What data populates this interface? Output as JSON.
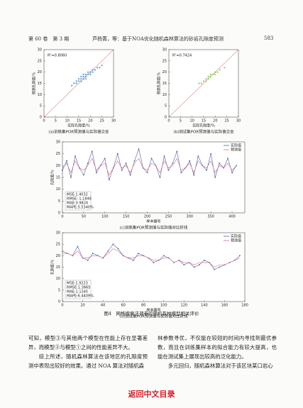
{
  "header": {
    "volume": "第 60 卷　第 3 期",
    "title": "芦杨菁，等：基于NOA优化随机森林算法的砂岩孔隙度预测",
    "page": "583"
  },
  "chart_data": [
    {
      "type": "scatter",
      "title": "(a)训练集POR预测值与实际值交会",
      "xlabel": "实际孔隙度/%",
      "ylabel": "预测孔隙度/%",
      "annotation": "R²=0.8060",
      "color": "#3a7fc4",
      "x": [
        12,
        13,
        14,
        14,
        15,
        15,
        16,
        16,
        16,
        17,
        17,
        17,
        18,
        18,
        18,
        19,
        19,
        20,
        20,
        21,
        21,
        22,
        23,
        24,
        25
      ],
      "y": [
        14,
        15,
        15,
        16,
        16,
        17,
        17,
        16,
        18,
        17,
        18,
        19,
        18,
        19,
        17,
        19,
        20,
        20,
        19,
        20,
        21,
        21,
        22,
        22,
        23
      ],
      "xlim": [
        0,
        30
      ],
      "ylim": [
        0,
        30
      ],
      "xticks": [
        0,
        5,
        10,
        15,
        20,
        25,
        30
      ],
      "yticks": [
        0,
        5,
        10,
        15,
        20,
        25,
        30
      ]
    },
    {
      "type": "scatter",
      "title": "(b)测试集POR预测值与实际值交会",
      "xlabel": "实际孔隙度/%",
      "ylabel": "预测孔隙度/%",
      "annotation": "R²=0.7424",
      "color": "#6fbf3a",
      "x": [
        13,
        14,
        15,
        16,
        16,
        17,
        17,
        18,
        18,
        19,
        20,
        20,
        21,
        22,
        24
      ],
      "y": [
        15,
        15,
        16,
        16,
        17,
        17,
        18,
        18,
        19,
        19,
        19,
        20,
        20,
        21,
        22
      ],
      "xlim": [
        0,
        30
      ],
      "ylim": [
        0,
        30
      ],
      "xticks": [
        0,
        5,
        10,
        15,
        20,
        25,
        30
      ],
      "yticks": [
        0,
        5,
        10,
        15,
        20,
        25,
        30
      ]
    },
    {
      "type": "line",
      "title": "(c)训练集POR预测值与实际值对比折线",
      "xlabel": "样本编号",
      "ylabel": "孔隙度/%",
      "stats": [
        "MSE:1.4032",
        "RMSE: 1.1846",
        "MAE:0.9824",
        "MAPE:5.5340%"
      ],
      "x": [
        0,
        10,
        20,
        30,
        40,
        50,
        60,
        70,
        80,
        90,
        100,
        110,
        120,
        130,
        140,
        150,
        160,
        170,
        180,
        190,
        200,
        210,
        220,
        230,
        240,
        250,
        260,
        270,
        280,
        290,
        300,
        310,
        320,
        330,
        340,
        350,
        360,
        370,
        380,
        390,
        400,
        410
      ],
      "series": [
        {
          "name": "实际值",
          "color": "#4a5fa8",
          "marker": "circle",
          "values": [
            18,
            22,
            15,
            24,
            19,
            16,
            21,
            26,
            17,
            20,
            23,
            14,
            19,
            25,
            18,
            21,
            16,
            22,
            27,
            19,
            17,
            23,
            20,
            15,
            24,
            18,
            21,
            26,
            17,
            19,
            22,
            16,
            24,
            20,
            18,
            25,
            15,
            21,
            19,
            23,
            17,
            20
          ]
        },
        {
          "name": "预测值",
          "color": "#e06c7a",
          "values": [
            19,
            21,
            17,
            22,
            19,
            18,
            20,
            23,
            18,
            20,
            21,
            16,
            19,
            22,
            19,
            20,
            17,
            21,
            23,
            19,
            18,
            21,
            20,
            17,
            22,
            19,
            20,
            23,
            18,
            19,
            21,
            17,
            22,
            20,
            19,
            22,
            17,
            20,
            19,
            21,
            18,
            20
          ]
        }
      ],
      "xlim": [
        0,
        430
      ],
      "ylim": [
        0,
        30
      ],
      "xticks": [
        0,
        50,
        100,
        150,
        200,
        250,
        300,
        350,
        400
      ],
      "yticks": [
        0,
        5,
        10,
        15,
        20,
        25,
        30
      ],
      "legend": "upper right"
    },
    {
      "type": "line",
      "title": "(d)测试集POR预测值与实际值对比折线",
      "xlabel": "样本编号",
      "ylabel": "孔隙度/%",
      "stats": [
        "MSE:1.9223",
        "RMSE:1.3865",
        "MAE:1.1345",
        "MAPE:6.4409%"
      ],
      "x": [
        0,
        5,
        10,
        15,
        20,
        25,
        30,
        35,
        40,
        45,
        50,
        55,
        60,
        65,
        70,
        75,
        80,
        85,
        90,
        95,
        100,
        105,
        110,
        115,
        120,
        125,
        130,
        135,
        140,
        145,
        150,
        155,
        160,
        165,
        170,
        175
      ],
      "series": [
        {
          "name": "实际值",
          "color": "#4a5fa8",
          "marker": "circle",
          "values": [
            22,
            21,
            20,
            24,
            19,
            18,
            21,
            20,
            19,
            22,
            25,
            23,
            20,
            19,
            18,
            21,
            20,
            19,
            17,
            18,
            20,
            19,
            17,
            18,
            16,
            17,
            15,
            16,
            18,
            17,
            14,
            15,
            16,
            17,
            18,
            20
          ]
        },
        {
          "name": "预测值",
          "color": "#e06c7a",
          "values": [
            21,
            21,
            20,
            22,
            19,
            19,
            20,
            20,
            19,
            21,
            23,
            22,
            20,
            19,
            19,
            20,
            20,
            19,
            18,
            18,
            19,
            19,
            17,
            18,
            17,
            17,
            16,
            17,
            17,
            17,
            15,
            16,
            16,
            17,
            18,
            19
          ]
        }
      ],
      "xlim": [
        0,
        180
      ],
      "ylim": [
        0,
        30
      ],
      "xticks": [
        0,
        20,
        40,
        60,
        80,
        100,
        120,
        140,
        160,
        180
      ],
      "yticks": [
        0,
        5,
        10,
        15,
        20,
        25,
        30
      ],
      "legend": "upper right"
    }
  ],
  "figure_caption": "图4　网格搜索法调参的随机森林模型相关评价",
  "body": {
    "left": [
      "可知，模型③与其他两个模型在性能上存在显著差异，而模型②与模型①之间的性能差异不大。",
      "综上所述，随机森林算法在该地区的孔隙度预测中表现出较好的效果。通过 NOA 算法对随机森"
    ],
    "right": [
      "林参数寻优，不仅能在较短的时间内寻找到最优参数，而且在训练集样本的拟合能力有较大提高，也能在测试集上展现出较高的泛化能力。",
      "多元回归，随机森林算法对于该区块某口岩心"
    ]
  },
  "footer": "返回中文目录"
}
